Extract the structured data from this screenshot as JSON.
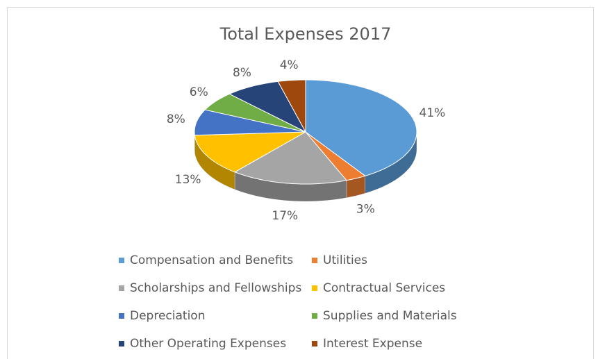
{
  "chart_data": {
    "type": "pie",
    "title": "Total Expenses 2017",
    "categories": [
      "Compensation and Benefits",
      "Utilities",
      "Scholarships and Fellowships",
      "Contractual Services",
      "Depreciation",
      "Supplies and Materials",
      "Other Operating Expenses",
      "Interest Expense"
    ],
    "values": [
      41,
      3,
      17,
      13,
      8,
      6,
      8,
      4
    ],
    "value_labels": [
      "41%",
      "3%",
      "17%",
      "13%",
      "8%",
      "6%",
      "8%",
      "4%"
    ],
    "colors": [
      "#5b9bd5",
      "#ed7d31",
      "#a5a5a5",
      "#ffc000",
      "#4472c4",
      "#70ad47",
      "#264478",
      "#9e480e"
    ],
    "legend": "bottom"
  }
}
